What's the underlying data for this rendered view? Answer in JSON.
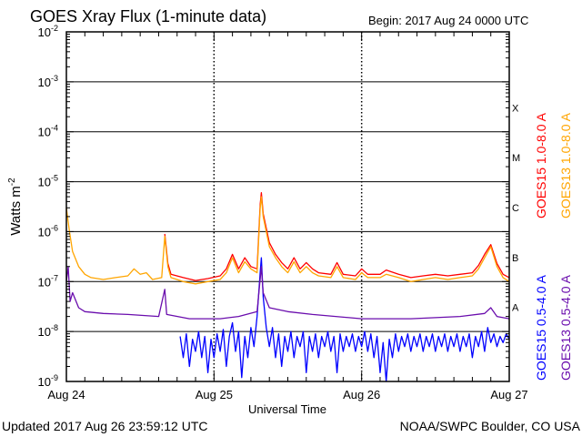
{
  "chart_data": {
    "type": "line",
    "title": "GOES Xray Flux (1-minute data)",
    "begin_label": "Begin:  2017 Aug 24 0000 UTC",
    "xlabel": "Universal Time",
    "ylabel": "Watts m",
    "ylabel_exp": "-2",
    "x_unit": "hours since 2017 Aug 24 0000 UTC",
    "xlim": [
      0,
      72
    ],
    "x_ticks": [
      {
        "h": 0,
        "label": "Aug 24"
      },
      {
        "h": 24,
        "label": "Aug 25"
      },
      {
        "h": 48,
        "label": "Aug 26"
      },
      {
        "h": 72,
        "label": "Aug 27"
      }
    ],
    "ylim": [
      1e-09,
      0.01
    ],
    "yscale": "log",
    "y_tick_base": "10",
    "y_tick_exponents": [
      "-2",
      "-3",
      "-4",
      "-5",
      "-6",
      "-7",
      "-8",
      "-9"
    ],
    "flare_classes": [
      {
        "label": "X",
        "decade": -4
      },
      {
        "label": "M",
        "decade": -5
      },
      {
        "label": "C",
        "decade": -6
      },
      {
        "label": "B",
        "decade": -7
      },
      {
        "label": "A",
        "decade": -8
      }
    ],
    "grid": "horizontal at decades 1e-3 to 1e-8",
    "legend_placement": "right (vertical)",
    "series": [
      {
        "name": "GOES15 1.0-8.0 A",
        "color": "#ff0000",
        "points": [
          [
            16,
            9e-07
          ],
          [
            16.5,
            2.3e-07
          ],
          [
            17,
            1.4e-07
          ],
          [
            19,
            1.2e-07
          ],
          [
            21,
            1.05e-07
          ],
          [
            23,
            1.15e-07
          ],
          [
            25,
            1.3e-07
          ],
          [
            26,
            1.8e-07
          ],
          [
            27,
            3.5e-07
          ],
          [
            28,
            1.8e-07
          ],
          [
            29,
            3e-07
          ],
          [
            30,
            2e-07
          ],
          [
            31,
            1.8e-07
          ],
          [
            31.5,
            3.5e-06
          ],
          [
            31.7,
            6e-06
          ],
          [
            32,
            2.3e-06
          ],
          [
            33,
            6e-07
          ],
          [
            34,
            3.5e-07
          ],
          [
            35,
            2.4e-07
          ],
          [
            36,
            1.8e-07
          ],
          [
            37,
            3e-07
          ],
          [
            38,
            1.8e-07
          ],
          [
            39,
            2.4e-07
          ],
          [
            40,
            1.8e-07
          ],
          [
            41,
            1.5e-07
          ],
          [
            43,
            1.4e-07
          ],
          [
            44,
            2.4e-07
          ],
          [
            45,
            1.4e-07
          ],
          [
            47,
            1.3e-07
          ],
          [
            48,
            1.8e-07
          ],
          [
            49,
            1.4e-07
          ],
          [
            51,
            1.4e-07
          ],
          [
            52,
            1.7e-07
          ],
          [
            54,
            1.4e-07
          ],
          [
            56,
            1.2e-07
          ],
          [
            58,
            1.3e-07
          ],
          [
            60,
            1.4e-07
          ],
          [
            62,
            1.3e-07
          ],
          [
            64,
            1.4e-07
          ],
          [
            66,
            1.5e-07
          ],
          [
            67,
            2.1e-07
          ],
          [
            68,
            3.5e-07
          ],
          [
            69,
            5.5e-07
          ],
          [
            70,
            2.3e-07
          ],
          [
            71,
            1.4e-07
          ],
          [
            72,
            1.2e-07
          ]
        ]
      },
      {
        "name": "GOES13 1.0-8.0 A",
        "color": "#ffa500",
        "points": [
          [
            0,
            3e-06
          ],
          [
            0.5,
            1e-06
          ],
          [
            1,
            4e-07
          ],
          [
            2,
            2e-07
          ],
          [
            3,
            1.4e-07
          ],
          [
            4,
            1.2e-07
          ],
          [
            6,
            1.1e-07
          ],
          [
            8,
            1.2e-07
          ],
          [
            10,
            1.3e-07
          ],
          [
            11,
            1.8e-07
          ],
          [
            12,
            1.4e-07
          ],
          [
            13,
            1.5e-07
          ],
          [
            14,
            1.1e-07
          ],
          [
            15.5,
            1.2e-07
          ],
          [
            16,
            8e-07
          ],
          [
            16.5,
            2e-07
          ],
          [
            17,
            1.2e-07
          ],
          [
            19,
            1e-07
          ],
          [
            21,
            9e-08
          ],
          [
            23,
            1e-07
          ],
          [
            25,
            1.1e-07
          ],
          [
            26,
            1.5e-07
          ],
          [
            27,
            3e-07
          ],
          [
            28,
            1.5e-07
          ],
          [
            29,
            2.5e-07
          ],
          [
            30,
            1.8e-07
          ],
          [
            31,
            1.5e-07
          ],
          [
            31.5,
            3e-06
          ],
          [
            31.7,
            5e-06
          ],
          [
            32,
            2e-06
          ],
          [
            33,
            5e-07
          ],
          [
            34,
            3e-07
          ],
          [
            35,
            2e-07
          ],
          [
            36,
            1.5e-07
          ],
          [
            37,
            2.5e-07
          ],
          [
            38,
            1.5e-07
          ],
          [
            39,
            2e-07
          ],
          [
            40,
            1.5e-07
          ],
          [
            41,
            1.3e-07
          ],
          [
            43,
            1.2e-07
          ],
          [
            44,
            2e-07
          ],
          [
            45,
            1.2e-07
          ],
          [
            47,
            1.1e-07
          ],
          [
            48,
            1.5e-07
          ],
          [
            49,
            1.2e-07
          ],
          [
            51,
            1.2e-07
          ],
          [
            52,
            1.4e-07
          ],
          [
            54,
            1.2e-07
          ],
          [
            56,
            1e-07
          ],
          [
            58,
            1.1e-07
          ],
          [
            60,
            1.2e-07
          ],
          [
            62,
            1.1e-07
          ],
          [
            64,
            1.2e-07
          ],
          [
            66,
            1.3e-07
          ],
          [
            67,
            1.8e-07
          ],
          [
            68,
            3e-07
          ],
          [
            69,
            5e-07
          ],
          [
            70,
            2e-07
          ],
          [
            71,
            1.2e-07
          ],
          [
            72,
            1e-07
          ]
        ]
      },
      {
        "name": "GOES15 0.5-4.0 A",
        "color": "#0000ff",
        "points": [
          [
            18.5,
            8e-09
          ],
          [
            19,
            3e-09
          ],
          [
            19.5,
            9e-09
          ],
          [
            20,
            2e-09
          ],
          [
            20.5,
            7e-09
          ],
          [
            21,
            4e-09
          ],
          [
            21.5,
            1e-08
          ],
          [
            22,
            3e-09
          ],
          [
            22.5,
            8e-09
          ],
          [
            23,
            1.5e-09
          ],
          [
            23.5,
            7e-09
          ],
          [
            24,
            3e-09
          ],
          [
            24.5,
            9e-09
          ],
          [
            25,
            4e-09
          ],
          [
            25.5,
            1.1e-08
          ],
          [
            26,
            2e-09
          ],
          [
            26.5,
            8e-09
          ],
          [
            27,
            1.5e-08
          ],
          [
            27.5,
            4e-09
          ],
          [
            28,
            1e-08
          ],
          [
            28.5,
            1.2e-09
          ],
          [
            29,
            8e-09
          ],
          [
            29.5,
            3e-09
          ],
          [
            30,
            1.2e-08
          ],
          [
            30.5,
            5e-09
          ],
          [
            31,
            2e-08
          ],
          [
            31.5,
            1.5e-07
          ],
          [
            31.7,
            3e-07
          ],
          [
            32,
            5e-08
          ],
          [
            32.5,
            1.2e-08
          ],
          [
            33,
            5e-09
          ],
          [
            33.5,
            1.2e-08
          ],
          [
            34,
            3e-09
          ],
          [
            34.5,
            9e-09
          ],
          [
            35,
            2e-09
          ],
          [
            35.5,
            8e-09
          ],
          [
            36,
            4e-09
          ],
          [
            36.5,
            1e-08
          ],
          [
            37,
            3e-09
          ],
          [
            37.5,
            8e-09
          ],
          [
            38,
            5e-09
          ],
          [
            38.5,
            1e-08
          ],
          [
            39,
            1.5e-09
          ],
          [
            39.5,
            8e-09
          ],
          [
            40,
            4e-09
          ],
          [
            40.5,
            9e-09
          ],
          [
            41,
            3e-09
          ],
          [
            41.5,
            8e-09
          ],
          [
            42,
            5e-09
          ],
          [
            42.5,
            1e-08
          ],
          [
            43,
            4e-09
          ],
          [
            43.5,
            8e-09
          ],
          [
            44,
            1.5e-09
          ],
          [
            44.5,
            9e-09
          ],
          [
            45,
            4e-09
          ],
          [
            45.5,
            8e-09
          ],
          [
            46,
            5e-09
          ],
          [
            46.5,
            9e-09
          ],
          [
            47,
            4e-09
          ],
          [
            47.5,
            8e-09
          ],
          [
            48,
            5e-09
          ],
          [
            48.5,
            1e-08
          ],
          [
            49,
            4e-09
          ],
          [
            49.5,
            9e-09
          ],
          [
            50,
            3e-09
          ],
          [
            50.5,
            8e-09
          ],
          [
            51,
            1.5e-09
          ],
          [
            51.5,
            6e-09
          ],
          [
            52,
            1e-09
          ],
          [
            52.5,
            7e-09
          ],
          [
            53,
            3e-09
          ],
          [
            53.5,
            9e-09
          ],
          [
            54,
            4e-09
          ],
          [
            54.5,
            8e-09
          ],
          [
            55,
            5e-09
          ],
          [
            55.5,
            9e-09
          ],
          [
            56,
            4e-09
          ],
          [
            56.5,
            8e-09
          ],
          [
            57,
            5e-09
          ],
          [
            57.5,
            9e-09
          ],
          [
            58,
            4e-09
          ],
          [
            58.5,
            8e-09
          ],
          [
            59,
            5e-09
          ],
          [
            59.5,
            9e-09
          ],
          [
            60,
            4e-09
          ],
          [
            60.5,
            8e-09
          ],
          [
            61,
            5e-09
          ],
          [
            61.5,
            9e-09
          ],
          [
            62,
            4e-09
          ],
          [
            62.5,
            8e-09
          ],
          [
            63,
            5e-09
          ],
          [
            63.5,
            9e-09
          ],
          [
            64,
            4e-09
          ],
          [
            64.5,
            8e-09
          ],
          [
            65,
            5e-09
          ],
          [
            65.5,
            9e-09
          ],
          [
            66,
            3e-09
          ],
          [
            66.5,
            8e-09
          ],
          [
            67,
            5e-09
          ],
          [
            67.5,
            1e-08
          ],
          [
            68,
            4e-09
          ],
          [
            68.5,
            1.2e-08
          ],
          [
            69,
            6e-09
          ],
          [
            69.5,
            9e-09
          ],
          [
            70,
            5e-09
          ],
          [
            70.5,
            8e-09
          ],
          [
            71,
            6e-09
          ],
          [
            71.5,
            9e-09
          ],
          [
            72,
            7e-09
          ]
        ]
      },
      {
        "name": "GOES13 0.5-4.0 A",
        "color": "#6a0dad",
        "points": [
          [
            0,
            1e-07
          ],
          [
            0.3,
            2e-07
          ],
          [
            0.6,
            4e-08
          ],
          [
            1,
            6e-08
          ],
          [
            2,
            3e-08
          ],
          [
            3,
            2.5e-08
          ],
          [
            6,
            2.3e-08
          ],
          [
            10,
            2.2e-08
          ],
          [
            15,
            2e-08
          ],
          [
            16,
            7e-08
          ],
          [
            16.3,
            2.2e-08
          ],
          [
            20,
            1.8e-08
          ],
          [
            25,
            1.8e-08
          ],
          [
            28,
            2e-08
          ],
          [
            31,
            2.5e-08
          ],
          [
            31.7,
            2e-07
          ],
          [
            32,
            6e-08
          ],
          [
            33,
            3e-08
          ],
          [
            36,
            2.5e-08
          ],
          [
            40,
            2.2e-08
          ],
          [
            48,
            1.8e-08
          ],
          [
            56,
            1.8e-08
          ],
          [
            64,
            2e-08
          ],
          [
            68,
            2.3e-08
          ],
          [
            69,
            3e-08
          ],
          [
            70,
            2e-08
          ],
          [
            72,
            1.8e-08
          ]
        ]
      }
    ]
  },
  "footer": {
    "updated": "Updated 2017 Aug 26 23:59:12 UTC",
    "credit": "NOAA/SWPC Boulder, CO USA"
  }
}
